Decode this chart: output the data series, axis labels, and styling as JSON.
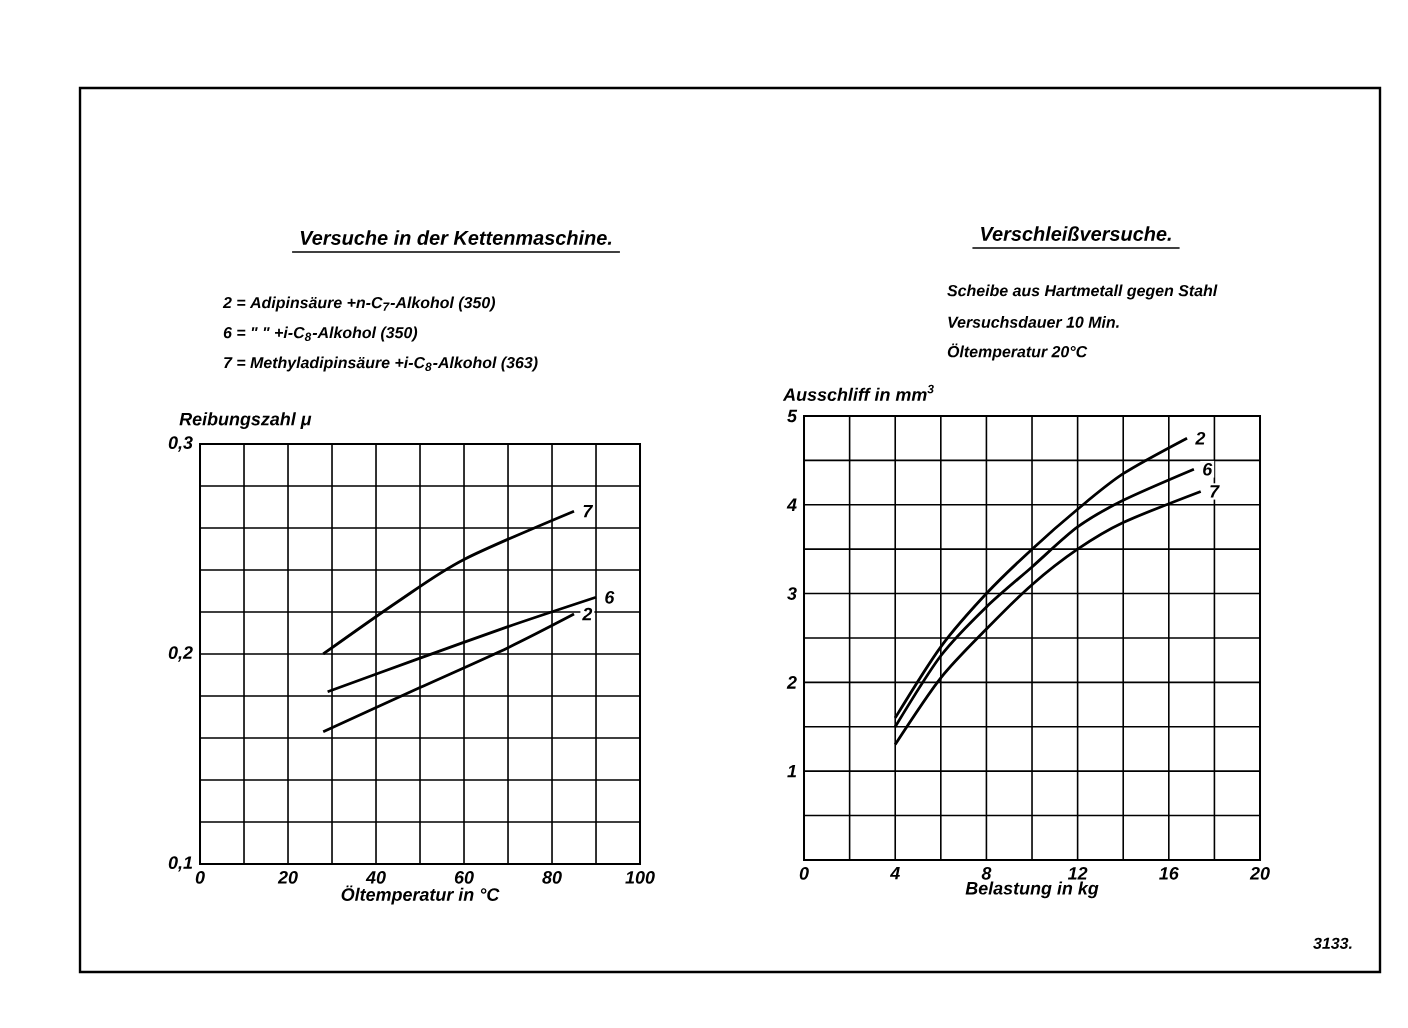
{
  "chart_data": [
    {
      "type": "line",
      "title": "Versuche in der Kettenmaschine.",
      "ylabel": "Reibungszahl μ",
      "xlabel": "Öltemperatur in °C",
      "annotations": [
        "2 = Adipinsäure +n-C$_{7}$-Alkohol (350)",
        "6 = \"    \" +i-C$_{8}$-Alkohol (350)",
        "7 = Methyladipinsäure +i-C$_{8}$-Alkohol (363)"
      ],
      "xlim": [
        0,
        100
      ],
      "ylim": [
        0.1,
        0.3
      ],
      "xticks": [
        0,
        {
          "value": 10,
          "label": null
        },
        20,
        {
          "value": 30,
          "label": null
        },
        40,
        {
          "value": 50,
          "label": null
        },
        60,
        {
          "value": 70,
          "label": null
        },
        80,
        {
          "value": 90,
          "label": null
        },
        100
      ],
      "yticks": [
        {
          "value": 0.1,
          "label": "0,1"
        },
        {
          "value": 0.12,
          "label": null
        },
        {
          "value": 0.14,
          "label": null
        },
        {
          "value": 0.16,
          "label": null
        },
        {
          "value": 0.18,
          "label": null
        },
        {
          "value": 0.2,
          "label": "0,2"
        },
        {
          "value": 0.22,
          "label": null
        },
        {
          "value": 0.24,
          "label": null
        },
        {
          "value": 0.26,
          "label": null
        },
        {
          "value": 0.28,
          "label": null
        },
        {
          "value": 0.3,
          "label": "0,3"
        }
      ],
      "grid": true,
      "line_style": "solid",
      "series": [
        {
          "name": "7",
          "color": "#000000",
          "x": [
            28,
            45,
            60,
            85
          ],
          "values": [
            0.2,
            0.225,
            0.245,
            0.268
          ]
        },
        {
          "name": "6",
          "color": "#000000",
          "x": [
            29,
            50,
            70,
            90
          ],
          "values": [
            0.182,
            0.198,
            0.213,
            0.227
          ]
        },
        {
          "name": "2",
          "color": "#000000",
          "x": [
            28,
            50,
            70,
            85
          ],
          "values": [
            0.163,
            0.184,
            0.203,
            0.219
          ]
        }
      ]
    },
    {
      "type": "line",
      "title": "Verschleißversuche.",
      "ylabel": "Ausschliff in mm$^{3}$",
      "xlabel": "Belastung in kg",
      "annotations": [
        "Scheibe aus Hartmetall gegen Stahl",
        "Versuchsdauer 10 Min.",
        "Öltemperatur 20°C",
        "3133."
      ],
      "xlim": [
        0,
        20
      ],
      "ylim": [
        0,
        5
      ],
      "xticks": [
        0,
        {
          "value": 2,
          "label": null
        },
        4,
        {
          "value": 6,
          "label": null
        },
        8,
        {
          "value": 10,
          "label": null
        },
        12,
        {
          "value": 14,
          "label": null
        },
        16,
        {
          "value": 18,
          "label": null
        },
        20
      ],
      "yticks": [
        {
          "value": 0,
          "label": null
        },
        {
          "value": 0.5,
          "label": null
        },
        1,
        {
          "value": 1.5,
          "label": null
        },
        2,
        {
          "value": 2.5,
          "label": null
        },
        3,
        {
          "value": 3.5,
          "label": null
        },
        4,
        {
          "value": 4.5,
          "label": null
        },
        5
      ],
      "grid": true,
      "line_style": "solid",
      "series": [
        {
          "name": "2",
          "color": "#000000",
          "x": [
            4,
            6,
            8,
            10,
            12,
            14,
            16.8
          ],
          "values": [
            1.6,
            2.4,
            3.0,
            3.5,
            3.95,
            4.35,
            4.75
          ]
        },
        {
          "name": "6",
          "color": "#000000",
          "x": [
            4,
            6,
            8,
            10,
            12,
            14,
            17.1
          ],
          "values": [
            1.5,
            2.3,
            2.85,
            3.3,
            3.75,
            4.05,
            4.4
          ]
        },
        {
          "name": "7",
          "color": "#000000",
          "x": [
            4,
            6,
            8,
            10,
            12,
            14,
            17.4
          ],
          "values": [
            1.3,
            2.05,
            2.6,
            3.1,
            3.5,
            3.8,
            4.15
          ]
        }
      ]
    }
  ]
}
